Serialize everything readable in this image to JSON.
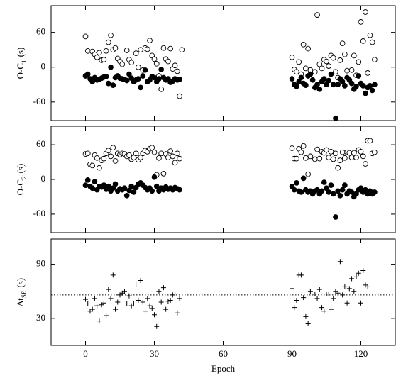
{
  "chart_data": [
    {
      "type": "scatter",
      "y_label": "O-C",
      "y_label_sub": "1",
      "y_label_unit": "(s)",
      "ylim": [
        -92,
        106
      ],
      "yticks": [
        -60,
        0,
        60
      ],
      "series": [
        {
          "marker": "open",
          "color": "#000000",
          "x": [
            0,
            1,
            3,
            4,
            5,
            6,
            7,
            8,
            9,
            10,
            11,
            12,
            13,
            14,
            15,
            16,
            18,
            19,
            20,
            22,
            23,
            24,
            25,
            26,
            27,
            28,
            29,
            30,
            31,
            32,
            33,
            34,
            35,
            36,
            37,
            38,
            39,
            40,
            41,
            42,
            90,
            91,
            92,
            93,
            94,
            95,
            96,
            97,
            98,
            100,
            101,
            102,
            103,
            104,
            105,
            106,
            107,
            108,
            109,
            110,
            111,
            112,
            113,
            114,
            116,
            117,
            118,
            119,
            120,
            121,
            122,
            123,
            124,
            125,
            126
          ],
          "values": [
            53,
            28,
            27,
            22,
            17,
            25,
            12,
            13,
            28,
            43,
            55,
            30,
            33,
            15,
            10,
            5,
            29,
            13,
            8,
            24,
            0,
            30,
            -5,
            33,
            31,
            46,
            20,
            14,
            6,
            -15,
            -38,
            33,
            14,
            10,
            32,
            -3,
            3,
            -7,
            -50,
            30,
            17,
            -4,
            -8,
            9,
            -12,
            39,
            -2,
            32,
            -5,
            -8,
            90,
            5,
            -2,
            13,
            10,
            2,
            20,
            16,
            -8,
            -18,
            12,
            41,
            22,
            -6,
            -5,
            20,
            -14,
            9,
            78,
            45,
            95,
            -10,
            55,
            43,
            13
          ]
        },
        {
          "marker": "filled",
          "color": "#000000",
          "x": [
            0,
            1,
            2,
            3,
            4,
            5,
            6,
            7,
            8,
            9,
            10,
            11,
            12,
            13,
            14,
            15,
            16,
            17,
            18,
            19,
            20,
            21,
            22,
            23,
            24,
            25,
            26,
            27,
            28,
            29,
            30,
            31,
            32,
            33,
            34,
            35,
            36,
            37,
            38,
            39,
            40,
            41,
            90,
            91,
            92,
            93,
            94,
            95,
            96,
            97,
            98,
            99,
            100,
            101,
            102,
            103,
            104,
            105,
            106,
            107,
            108,
            109,
            110,
            111,
            112,
            113,
            114,
            115,
            116,
            117,
            118,
            119,
            120,
            121,
            122,
            123,
            124,
            125,
            126
          ],
          "values": [
            -15,
            -12,
            -20,
            -25,
            -18,
            -22,
            -21,
            -19,
            -17,
            -16,
            -28,
            0,
            -31,
            -18,
            -15,
            -19,
            -20,
            -21,
            -23,
            -12,
            -19,
            -25,
            -22,
            -20,
            -35,
            -15,
            -5,
            -25,
            -22,
            -16,
            -18,
            -25,
            -20,
            -4,
            -18,
            -22,
            -20,
            -26,
            -24,
            -20,
            -22,
            -21,
            -20,
            -30,
            -33,
            -25,
            -18,
            -28,
            -31,
            -15,
            -12,
            -22,
            -35,
            -30,
            -38,
            -25,
            -20,
            -30,
            -23,
            -12,
            -30,
            -88,
            -30,
            -20,
            -25,
            -32,
            -18,
            -22,
            -28,
            -38,
            -33,
            -15,
            -28,
            -32,
            -45,
            -35,
            -32,
            -40,
            -30
          ]
        }
      ]
    },
    {
      "type": "scatter",
      "y_label": "O-C",
      "y_label_sub": "2",
      "y_label_unit": "(s)",
      "ylim": [
        -92,
        92
      ],
      "yticks": [
        -60,
        0,
        60
      ],
      "series": [
        {
          "marker": "open",
          "color": "#000000",
          "x": [
            0,
            1,
            2,
            3,
            4,
            5,
            6,
            7,
            8,
            9,
            10,
            11,
            12,
            13,
            14,
            15,
            16,
            17,
            18,
            19,
            20,
            21,
            22,
            23,
            24,
            25,
            26,
            27,
            28,
            29,
            30,
            31,
            32,
            33,
            34,
            35,
            36,
            37,
            38,
            39,
            40,
            41,
            90,
            91,
            92,
            93,
            94,
            95,
            96,
            97,
            98,
            100,
            101,
            102,
            103,
            104,
            105,
            106,
            107,
            108,
            109,
            110,
            111,
            112,
            113,
            114,
            115,
            116,
            117,
            118,
            119,
            120,
            121,
            122,
            123,
            124,
            125,
            126
          ],
          "values": [
            44,
            45,
            26,
            24,
            42,
            37,
            20,
            33,
            36,
            45,
            50,
            40,
            55,
            32,
            45,
            43,
            45,
            44,
            40,
            42,
            35,
            38,
            45,
            34,
            38,
            45,
            50,
            48,
            53,
            55,
            47,
            8,
            37,
            45,
            10,
            44,
            38,
            49,
            40,
            29,
            45,
            36,
            54,
            36,
            36,
            53,
            47,
            58,
            37,
            9,
            40,
            35,
            52,
            36,
            48,
            46,
            51,
            38,
            48,
            35,
            45,
            20,
            33,
            47,
            37,
            47,
            46,
            38,
            46,
            38,
            51,
            48,
            40,
            27,
            67,
            67,
            45,
            47
          ]
        },
        {
          "marker": "filled",
          "color": "#000000",
          "x": [
            0,
            1,
            2,
            3,
            4,
            5,
            6,
            7,
            8,
            9,
            10,
            11,
            12,
            13,
            14,
            15,
            16,
            17,
            18,
            19,
            20,
            21,
            22,
            23,
            24,
            25,
            26,
            27,
            28,
            29,
            30,
            31,
            32,
            33,
            34,
            35,
            36,
            37,
            38,
            39,
            40,
            41,
            90,
            91,
            92,
            93,
            94,
            95,
            96,
            97,
            98,
            99,
            100,
            101,
            102,
            103,
            104,
            105,
            106,
            107,
            108,
            109,
            110,
            111,
            112,
            113,
            114,
            115,
            116,
            117,
            118,
            119,
            120,
            121,
            122,
            123,
            124,
            125,
            126
          ],
          "values": [
            -10,
            -1,
            -12,
            -15,
            -4,
            -18,
            -12,
            -13,
            -10,
            -17,
            -12,
            -20,
            -15,
            -8,
            -20,
            -16,
            -18,
            -15,
            -28,
            -19,
            -12,
            -22,
            -14,
            -8,
            -6,
            -10,
            -14,
            -18,
            -15,
            -20,
            4,
            -12,
            -20,
            -15,
            -18,
            -13,
            -17,
            -15,
            -18,
            -14,
            -16,
            -18,
            -12,
            -18,
            -6,
            -20,
            -22,
            2,
            -18,
            -22,
            -20,
            -25,
            -20,
            -18,
            -25,
            -20,
            -5,
            -15,
            -22,
            -10,
            -25,
            -65,
            -20,
            -28,
            -18,
            -10,
            -25,
            -20,
            -22,
            -30,
            -25,
            -18,
            -15,
            -22,
            -18,
            -25,
            -20,
            -25,
            -22
          ]
        }
      ]
    },
    {
      "type": "scatter",
      "y_label": "Δt",
      "y_label_sub": "SE",
      "y_label_unit": "(s)",
      "x_label": "Epoch",
      "xlim": [
        -15,
        135
      ],
      "xticks": [
        0,
        30,
        60,
        90,
        120
      ],
      "ylim": [
        0,
        118
      ],
      "yticks": [
        30,
        90
      ],
      "hline": 56,
      "series": [
        {
          "marker": "plus",
          "color": "#000000",
          "x": [
            0,
            1,
            2,
            3,
            4,
            5,
            6,
            7,
            8,
            9,
            10,
            11,
            12,
            13,
            14,
            15,
            16,
            17,
            18,
            19,
            20,
            21,
            22,
            23,
            24,
            25,
            26,
            27,
            28,
            29,
            30,
            31,
            32,
            33,
            34,
            35,
            36,
            37,
            38,
            39,
            40,
            41,
            90,
            91,
            92,
            93,
            94,
            95,
            96,
            97,
            98,
            100,
            101,
            102,
            103,
            104,
            105,
            106,
            107,
            108,
            109,
            110,
            111,
            112,
            113,
            114,
            115,
            116,
            117,
            118,
            119,
            120,
            121,
            122,
            123
          ],
          "values": [
            51,
            46,
            38,
            40,
            52,
            44,
            27,
            45,
            47,
            33,
            62,
            52,
            78,
            40,
            48,
            56,
            58,
            60,
            46,
            55,
            44,
            46,
            68,
            50,
            72,
            48,
            38,
            52,
            44,
            41,
            34,
            21,
            60,
            48,
            64,
            40,
            49,
            50,
            56,
            57,
            36,
            52,
            63,
            42,
            50,
            78,
            78,
            53,
            32,
            24,
            60,
            57,
            52,
            62,
            42,
            38,
            57,
            57,
            40,
            52,
            60,
            58,
            93,
            56,
            65,
            47,
            63,
            74,
            60,
            76,
            80,
            47,
            83,
            67,
            65
          ]
        }
      ]
    }
  ]
}
